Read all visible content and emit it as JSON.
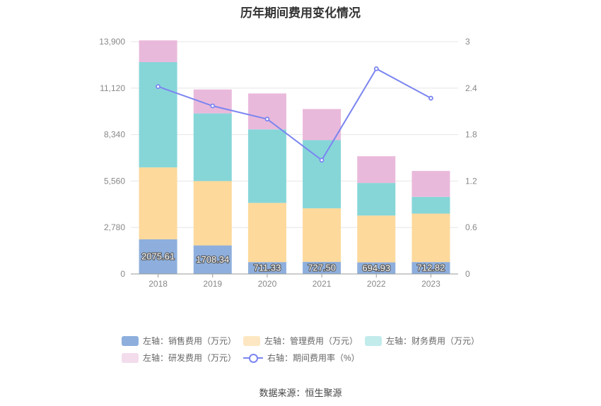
{
  "title": "历年期间费用变化情况",
  "source": "数据来源：恒生聚源",
  "colors": {
    "sales": "#8eafdd",
    "mgmt": "#fdd99b",
    "finance": "#86d6d8",
    "rd": "#e9b9db",
    "rate": "#7b85f0",
    "legend_finance": "#c2ebec",
    "legend_rd": "#f3dcec",
    "legend_mgmt": "#fde7c2"
  },
  "legend": [
    {
      "label": "左轴：销售费用（万元）",
      "key": "sales"
    },
    {
      "label": "左轴：管理费用（万元）",
      "key": "mgmt"
    },
    {
      "label": "左轴：财务费用（万元）",
      "key": "finance"
    },
    {
      "label": "左轴：研发费用（万元）",
      "key": "rd"
    },
    {
      "label": "右轴：期间费用率（%）",
      "key": "rate"
    }
  ],
  "chart_data": {
    "type": "bar",
    "stacked": true,
    "categories": [
      "2018",
      "2019",
      "2020",
      "2021",
      "2022",
      "2023"
    ],
    "series": [
      {
        "name": "左轴：销售费用（万元）",
        "key": "sales",
        "axis": "left",
        "values": [
          2075.61,
          1708.34,
          711.33,
          727.5,
          694.93,
          712.82
        ],
        "labels": [
          "2075.61",
          "1708.34",
          "711.33",
          "727.50",
          "694.93",
          "712.82"
        ]
      },
      {
        "name": "左轴：管理费用（万元）",
        "key": "mgmt",
        "axis": "left",
        "values": [
          4300,
          3850,
          3540,
          3200,
          2800,
          2900
        ]
      },
      {
        "name": "左轴：财务费用（万元）",
        "key": "finance",
        "axis": "left",
        "values": [
          6300,
          4050,
          4400,
          4080,
          1950,
          1000
        ]
      },
      {
        "name": "左轴：研发费用（万元）",
        "key": "rd",
        "axis": "left",
        "values": [
          1300,
          1430,
          2150,
          1860,
          1600,
          1550
        ]
      },
      {
        "name": "右轴：期间费用率（%）",
        "key": "rate",
        "axis": "right",
        "type": "line",
        "values": [
          2.42,
          2.17,
          2.0,
          1.47,
          2.65,
          2.27
        ]
      }
    ],
    "left_axis": {
      "ylim": [
        0,
        13900
      ],
      "ticks": [
        "0",
        "2,780",
        "5,560",
        "8,340",
        "11,120",
        "13,900"
      ]
    },
    "right_axis": {
      "ylim": [
        0,
        3
      ],
      "ticks": [
        "0",
        "0.6",
        "1.2",
        "1.8",
        "2.4",
        "3"
      ]
    },
    "grid": true,
    "legend_position": "bottom"
  }
}
